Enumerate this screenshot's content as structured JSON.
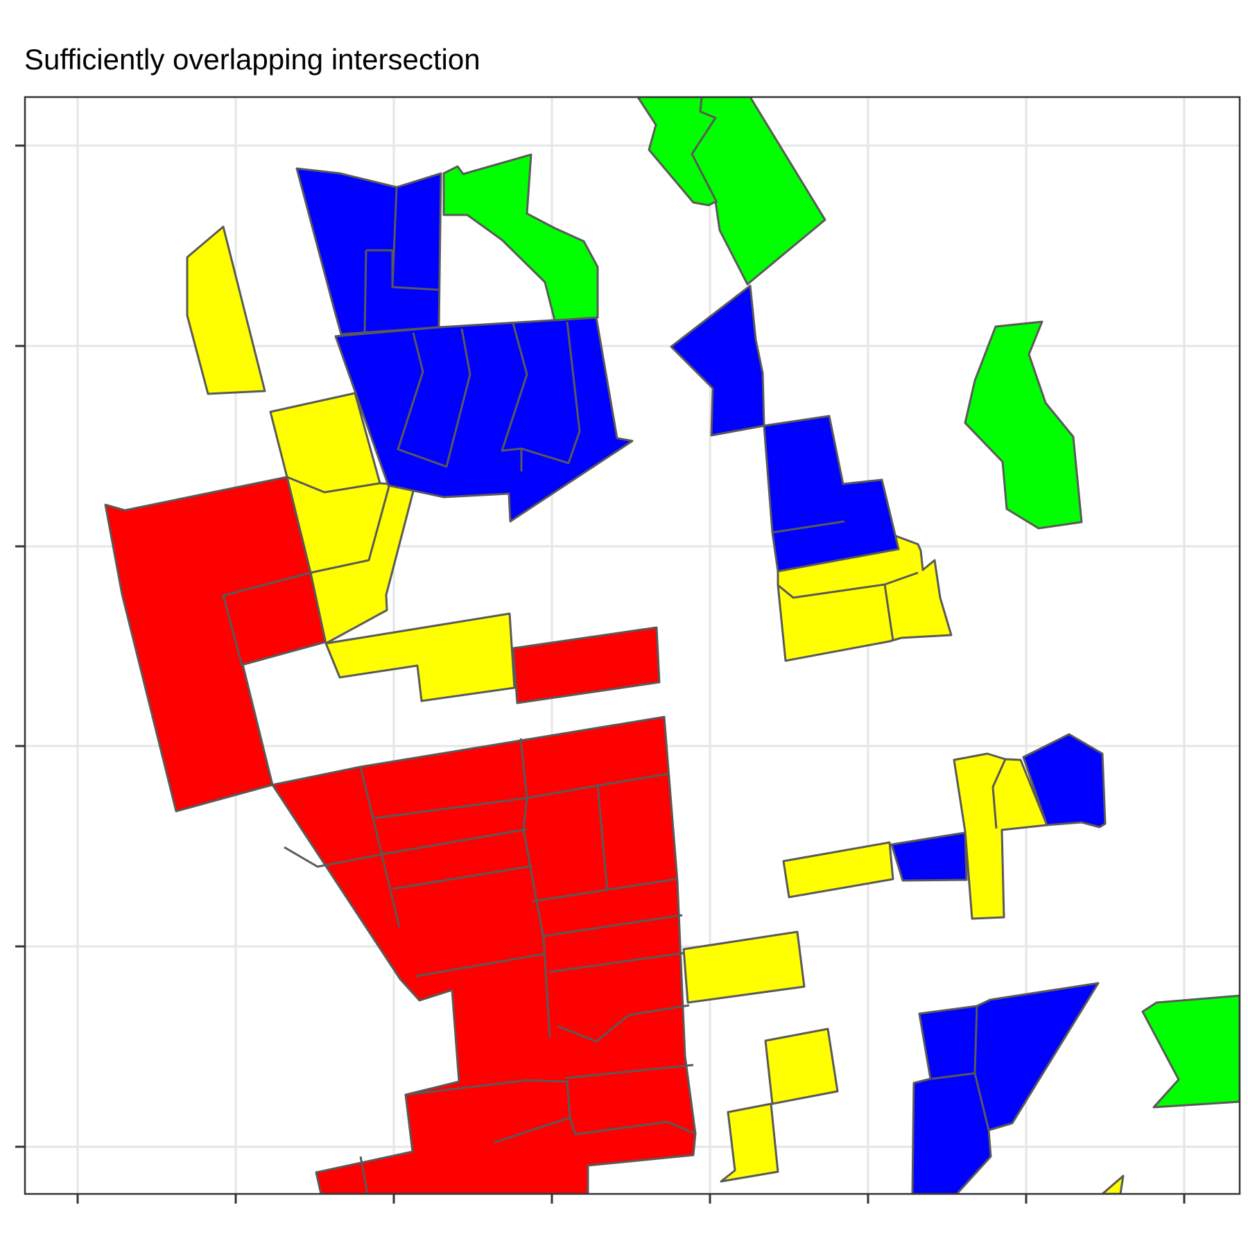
{
  "title": "Sufficiently overlapping intersection",
  "colors": {
    "red": "#ff0000",
    "yellow": "#ffff00",
    "blue": "#0000ff",
    "green": "#00ff00",
    "outline": "#595959",
    "grid": "#e6e6e6",
    "frame": "#333333"
  },
  "axes": {
    "x_tick_labels": "none",
    "y_tick_labels": "none",
    "grid": true
  }
}
